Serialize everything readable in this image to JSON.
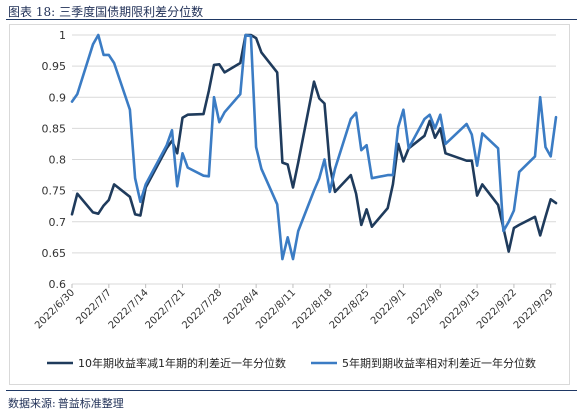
{
  "figure": {
    "label": "图表 18:",
    "title": "三季度国债期限利差分位数",
    "source_label": "数据来源:",
    "source_text": "普益标准整理"
  },
  "chart_data": {
    "type": "line",
    "x_ticks": [
      "2022/6/30",
      "2022/7/7",
      "2022/7/14",
      "2022/7/21",
      "2022/7/28",
      "2022/8/4",
      "2022/8/11",
      "2022/8/18",
      "2022/8/25",
      "2022/9/1",
      "2022/9/8",
      "2022/9/15",
      "2022/9/22",
      "2022/9/29"
    ],
    "y_ticks": [
      "0.6",
      "0.65",
      "0.7",
      "0.75",
      "0.8",
      "0.85",
      "0.9",
      "0.95",
      "1"
    ],
    "ylim": [
      0.6,
      1.0
    ],
    "grid": "horizontal",
    "legend_position": "bottom",
    "series": [
      {
        "name": "10年期收益率减1年期的利差近一年分位数",
        "color": "#1f3b5c",
        "points": [
          [
            "2022-06-30",
            0.712
          ],
          [
            "2022-07-01",
            0.745
          ],
          [
            "2022-07-04",
            0.715
          ],
          [
            "2022-07-05",
            0.713
          ],
          [
            "2022-07-06",
            0.726
          ],
          [
            "2022-07-07",
            0.735
          ],
          [
            "2022-07-08",
            0.76
          ],
          [
            "2022-07-11",
            0.74
          ],
          [
            "2022-07-12",
            0.712
          ],
          [
            "2022-07-13",
            0.71
          ],
          [
            "2022-07-14",
            0.755
          ],
          [
            "2022-07-18",
            0.818
          ],
          [
            "2022-07-19",
            0.83
          ],
          [
            "2022-07-20",
            0.81
          ],
          [
            "2022-07-21",
            0.867
          ],
          [
            "2022-07-22",
            0.872
          ],
          [
            "2022-07-25",
            0.873
          ],
          [
            "2022-07-26",
            0.91
          ],
          [
            "2022-07-27",
            0.952
          ],
          [
            "2022-07-28",
            0.953
          ],
          [
            "2022-07-29",
            0.94
          ],
          [
            "2022-08-01",
            0.955
          ],
          [
            "2022-08-02",
            1.0
          ],
          [
            "2022-08-03",
            1.0
          ],
          [
            "2022-08-04",
            0.995
          ],
          [
            "2022-08-05",
            0.972
          ],
          [
            "2022-08-08",
            0.94
          ],
          [
            "2022-08-09",
            0.795
          ],
          [
            "2022-08-10",
            0.792
          ],
          [
            "2022-08-11",
            0.755
          ],
          [
            "2022-08-12",
            0.795
          ],
          [
            "2022-08-15",
            0.925
          ],
          [
            "2022-08-16",
            0.898
          ],
          [
            "2022-08-17",
            0.89
          ],
          [
            "2022-08-18",
            0.79
          ],
          [
            "2022-08-19",
            0.748
          ],
          [
            "2022-08-22",
            0.775
          ],
          [
            "2022-08-23",
            0.745
          ],
          [
            "2022-08-24",
            0.695
          ],
          [
            "2022-08-25",
            0.72
          ],
          [
            "2022-08-26",
            0.692
          ],
          [
            "2022-08-29",
            0.722
          ],
          [
            "2022-08-30",
            0.76
          ],
          [
            "2022-08-31",
            0.825
          ],
          [
            "2022-09-01",
            0.797
          ],
          [
            "2022-09-02",
            0.818
          ],
          [
            "2022-09-05",
            0.838
          ],
          [
            "2022-09-06",
            0.862
          ],
          [
            "2022-09-07",
            0.835
          ],
          [
            "2022-09-08",
            0.85
          ],
          [
            "2022-09-09",
            0.81
          ],
          [
            "2022-09-13",
            0.798
          ],
          [
            "2022-09-14",
            0.798
          ],
          [
            "2022-09-15",
            0.742
          ],
          [
            "2022-09-16",
            0.76
          ],
          [
            "2022-09-19",
            0.727
          ],
          [
            "2022-09-20",
            0.69
          ],
          [
            "2022-09-21",
            0.652
          ],
          [
            "2022-09-22",
            0.69
          ],
          [
            "2022-09-23",
            0.695
          ],
          [
            "2022-09-26",
            0.708
          ],
          [
            "2022-09-27",
            0.678
          ],
          [
            "2022-09-28",
            0.708
          ],
          [
            "2022-09-29",
            0.736
          ],
          [
            "2022-09-30",
            0.73
          ]
        ]
      },
      {
        "name": "5年期到期收益率相对利差近一年分位数",
        "color": "#3b7cc4",
        "points": [
          [
            "2022-06-30",
            0.893
          ],
          [
            "2022-07-01",
            0.905
          ],
          [
            "2022-07-04",
            0.985
          ],
          [
            "2022-07-05",
            1.0
          ],
          [
            "2022-07-06",
            0.968
          ],
          [
            "2022-07-07",
            0.968
          ],
          [
            "2022-07-08",
            0.955
          ],
          [
            "2022-07-11",
            0.88
          ],
          [
            "2022-07-12",
            0.77
          ],
          [
            "2022-07-13",
            0.732
          ],
          [
            "2022-07-14",
            0.76
          ],
          [
            "2022-07-18",
            0.823
          ],
          [
            "2022-07-19",
            0.847
          ],
          [
            "2022-07-20",
            0.757
          ],
          [
            "2022-07-21",
            0.81
          ],
          [
            "2022-07-22",
            0.787
          ],
          [
            "2022-07-25",
            0.774
          ],
          [
            "2022-07-26",
            0.773
          ],
          [
            "2022-07-27",
            0.9
          ],
          [
            "2022-07-28",
            0.86
          ],
          [
            "2022-07-29",
            0.876
          ],
          [
            "2022-08-01",
            0.905
          ],
          [
            "2022-08-02",
            1.0
          ],
          [
            "2022-08-03",
            0.998
          ],
          [
            "2022-08-04",
            0.82
          ],
          [
            "2022-08-05",
            0.785
          ],
          [
            "2022-08-08",
            0.728
          ],
          [
            "2022-08-09",
            0.64
          ],
          [
            "2022-08-10",
            0.675
          ],
          [
            "2022-08-11",
            0.64
          ],
          [
            "2022-08-12",
            0.685
          ],
          [
            "2022-08-15",
            0.75
          ],
          [
            "2022-08-16",
            0.77
          ],
          [
            "2022-08-17",
            0.8
          ],
          [
            "2022-08-18",
            0.748
          ],
          [
            "2022-08-19",
            0.785
          ],
          [
            "2022-08-22",
            0.865
          ],
          [
            "2022-08-23",
            0.875
          ],
          [
            "2022-08-24",
            0.815
          ],
          [
            "2022-08-25",
            0.823
          ],
          [
            "2022-08-26",
            0.77
          ],
          [
            "2022-08-29",
            0.775
          ],
          [
            "2022-08-30",
            0.775
          ],
          [
            "2022-08-31",
            0.852
          ],
          [
            "2022-09-01",
            0.88
          ],
          [
            "2022-09-02",
            0.818
          ],
          [
            "2022-09-05",
            0.865
          ],
          [
            "2022-09-06",
            0.872
          ],
          [
            "2022-09-07",
            0.85
          ],
          [
            "2022-09-08",
            0.872
          ],
          [
            "2022-09-09",
            0.825
          ],
          [
            "2022-09-13",
            0.857
          ],
          [
            "2022-09-14",
            0.84
          ],
          [
            "2022-09-15",
            0.79
          ],
          [
            "2022-09-16",
            0.842
          ],
          [
            "2022-09-19",
            0.818
          ],
          [
            "2022-09-20",
            0.685
          ],
          [
            "2022-09-21",
            0.7
          ],
          [
            "2022-09-22",
            0.718
          ],
          [
            "2022-09-23",
            0.78
          ],
          [
            "2022-09-26",
            0.805
          ],
          [
            "2022-09-27",
            0.9
          ],
          [
            "2022-09-28",
            0.82
          ],
          [
            "2022-09-29",
            0.805
          ],
          [
            "2022-09-30",
            0.868
          ]
        ]
      }
    ]
  }
}
